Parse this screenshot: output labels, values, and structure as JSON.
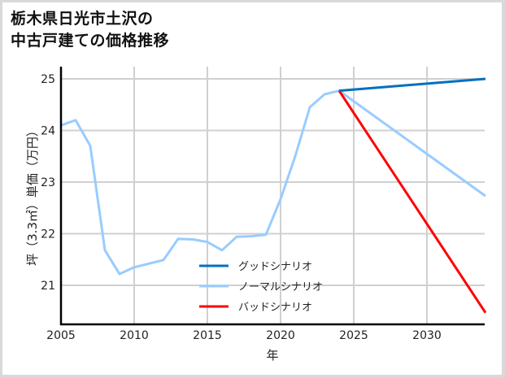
{
  "title": "栃木県日光市土沢の\n中古戸建ての価格推移",
  "chart_data": {
    "type": "line",
    "title": "栃木県日光市土沢の中古戸建ての価格推移",
    "xlabel": "年",
    "ylabel": "坪（3.3㎡）単価（万円）",
    "xlim": [
      2005,
      2034
    ],
    "ylim": [
      20.23,
      25.23
    ],
    "xticks": [
      2005,
      2010,
      2015,
      2020,
      2025,
      2030
    ],
    "yticks": [
      21,
      22,
      23,
      24,
      25
    ],
    "grid": true,
    "legend_position": "lower center",
    "series": [
      {
        "name": "グッドシナリオ",
        "color": "#0070c0",
        "x": [
          2024,
          2034
        ],
        "values": [
          24.77,
          25.0
        ]
      },
      {
        "name": "ノーマルシナリオ",
        "color": "#99ccff",
        "x": [
          2005,
          2006,
          2007,
          2008,
          2009,
          2010,
          2012,
          2013,
          2014,
          2015,
          2016,
          2017,
          2018,
          2019,
          2020,
          2021,
          2022,
          2023,
          2024,
          2034
        ],
        "values": [
          24.1,
          24.2,
          23.7,
          21.68,
          21.22,
          21.35,
          21.49,
          21.9,
          21.89,
          21.84,
          21.68,
          21.94,
          21.95,
          21.98,
          22.67,
          23.5,
          24.45,
          24.7,
          24.77,
          22.73
        ]
      },
      {
        "name": "バッドシナリオ",
        "color": "#ff0000",
        "x": [
          2024,
          2034
        ],
        "values": [
          24.77,
          20.47
        ]
      }
    ]
  }
}
